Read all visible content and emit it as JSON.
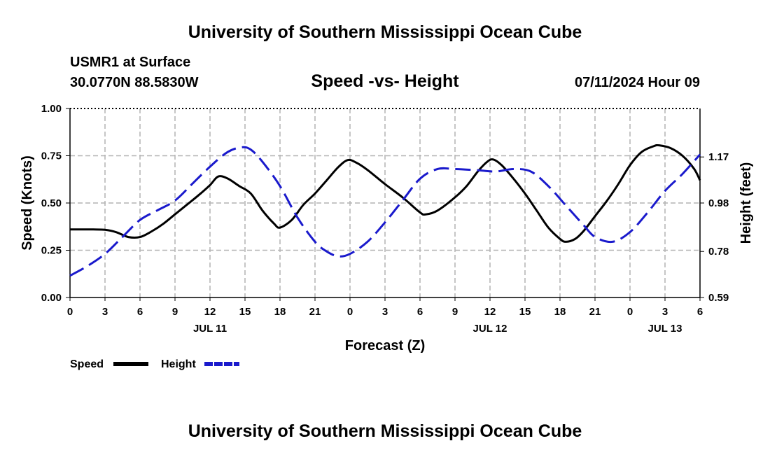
{
  "page": {
    "title_top": "University of Southern Mississippi Ocean Cube",
    "title_bottom": "University of Southern Mississippi Ocean Cube"
  },
  "chart_data": {
    "type": "line",
    "station": "USMR1 at Surface",
    "coords": "30.0770N  88.5830W",
    "title": "Speed -vs- Height",
    "date": "07/11/2024 Hour 09",
    "xlabel": "Forecast (Z)",
    "ylabel_left": "Speed (Knots)",
    "ylabel_right": "Height (feet)",
    "ylim_left": [
      0,
      1.0
    ],
    "ylim_right": [
      0.59,
      1.37
    ],
    "hour_range": [
      0,
      54
    ],
    "x_ticks": [
      {
        "hour": 0,
        "label": "0"
      },
      {
        "hour": 3,
        "label": "3"
      },
      {
        "hour": 6,
        "label": "6"
      },
      {
        "hour": 9,
        "label": "9"
      },
      {
        "hour": 12,
        "label": "12"
      },
      {
        "hour": 15,
        "label": "15"
      },
      {
        "hour": 18,
        "label": "18"
      },
      {
        "hour": 21,
        "label": "21"
      },
      {
        "hour": 24,
        "label": "0"
      },
      {
        "hour": 27,
        "label": "3"
      },
      {
        "hour": 30,
        "label": "6"
      },
      {
        "hour": 33,
        "label": "9"
      },
      {
        "hour": 36,
        "label": "12"
      },
      {
        "hour": 39,
        "label": "15"
      },
      {
        "hour": 42,
        "label": "18"
      },
      {
        "hour": 45,
        "label": "21"
      },
      {
        "hour": 48,
        "label": "0"
      },
      {
        "hour": 51,
        "label": "3"
      },
      {
        "hour": 54,
        "label": "6"
      }
    ],
    "date_labels": [
      {
        "hour": 12,
        "label": "JUL 11"
      },
      {
        "hour": 36,
        "label": "JUL 12"
      },
      {
        "hour": 51,
        "label": "JUL 13"
      }
    ],
    "y_ticks_left": [
      {
        "value": 0.0,
        "label": "0.00"
      },
      {
        "value": 0.25,
        "label": "0.25"
      },
      {
        "value": 0.5,
        "label": "0.50"
      },
      {
        "value": 0.75,
        "label": "0.75"
      },
      {
        "value": 1.0,
        "label": "1.00"
      }
    ],
    "y_ticks_right": [
      {
        "value": 0.59,
        "label": "0.59"
      },
      {
        "value": 0.78,
        "label": "0.78"
      },
      {
        "value": 0.98,
        "label": "0.98"
      },
      {
        "value": 1.17,
        "label": "1.17"
      }
    ],
    "series": [
      {
        "name": "Speed",
        "axis": "left",
        "color": "#000000",
        "dash": "solid",
        "points": [
          [
            0,
            0.36
          ],
          [
            1,
            0.36
          ],
          [
            2,
            0.36
          ],
          [
            3,
            0.358
          ],
          [
            4,
            0.345
          ],
          [
            5,
            0.32
          ],
          [
            6,
            0.32
          ],
          [
            7,
            0.35
          ],
          [
            8,
            0.39
          ],
          [
            9,
            0.44
          ],
          [
            10,
            0.49
          ],
          [
            11,
            0.54
          ],
          [
            12,
            0.595
          ],
          [
            12.7,
            0.64
          ],
          [
            13.5,
            0.63
          ],
          [
            14.5,
            0.59
          ],
          [
            15.5,
            0.55
          ],
          [
            16.5,
            0.46
          ],
          [
            17.5,
            0.39
          ],
          [
            18,
            0.37
          ],
          [
            19,
            0.41
          ],
          [
            20,
            0.49
          ],
          [
            21,
            0.55
          ],
          [
            22,
            0.62
          ],
          [
            23,
            0.69
          ],
          [
            23.8,
            0.727
          ],
          [
            24.5,
            0.715
          ],
          [
            25.5,
            0.675
          ],
          [
            27,
            0.6
          ],
          [
            28.5,
            0.53
          ],
          [
            30,
            0.45
          ],
          [
            30.5,
            0.44
          ],
          [
            31.5,
            0.46
          ],
          [
            33,
            0.53
          ],
          [
            34,
            0.59
          ],
          [
            35,
            0.67
          ],
          [
            35.8,
            0.72
          ],
          [
            36.3,
            0.73
          ],
          [
            37,
            0.7
          ],
          [
            38,
            0.63
          ],
          [
            39,
            0.55
          ],
          [
            40,
            0.46
          ],
          [
            41,
            0.37
          ],
          [
            42,
            0.31
          ],
          [
            42.5,
            0.295
          ],
          [
            43.3,
            0.31
          ],
          [
            44,
            0.35
          ],
          [
            45,
            0.43
          ],
          [
            46,
            0.51
          ],
          [
            47,
            0.6
          ],
          [
            48,
            0.7
          ],
          [
            49,
            0.77
          ],
          [
            50,
            0.8
          ],
          [
            50.5,
            0.805
          ],
          [
            51.5,
            0.79
          ],
          [
            52.5,
            0.75
          ],
          [
            53.5,
            0.68
          ],
          [
            54,
            0.62
          ]
        ]
      },
      {
        "name": "Height",
        "axis": "right",
        "color": "#1a1acc",
        "dash": "dashed",
        "points": [
          [
            0,
            0.68
          ],
          [
            1.5,
            0.72
          ],
          [
            3,
            0.77
          ],
          [
            4.5,
            0.84
          ],
          [
            6,
            0.91
          ],
          [
            7.5,
            0.95
          ],
          [
            9,
            0.99
          ],
          [
            10.5,
            1.06
          ],
          [
            12,
            1.13
          ],
          [
            13.5,
            1.19
          ],
          [
            14.7,
            1.21
          ],
          [
            15.5,
            1.2
          ],
          [
            16.5,
            1.15
          ],
          [
            18,
            1.05
          ],
          [
            19.5,
            0.92
          ],
          [
            21,
            0.82
          ],
          [
            22,
            0.78
          ],
          [
            23,
            0.76
          ],
          [
            24,
            0.77
          ],
          [
            25.5,
            0.82
          ],
          [
            27,
            0.9
          ],
          [
            28.5,
            0.99
          ],
          [
            30,
            1.08
          ],
          [
            31.5,
            1.12
          ],
          [
            33,
            1.12
          ],
          [
            35,
            1.115
          ],
          [
            36.5,
            1.11
          ],
          [
            38,
            1.12
          ],
          [
            39.5,
            1.11
          ],
          [
            41,
            1.05
          ],
          [
            42.5,
            0.97
          ],
          [
            44,
            0.89
          ],
          [
            45,
            0.84
          ],
          [
            46.5,
            0.82
          ],
          [
            48,
            0.86
          ],
          [
            49.5,
            0.94
          ],
          [
            51,
            1.03
          ],
          [
            52.5,
            1.1
          ],
          [
            54,
            1.18
          ]
        ]
      }
    ],
    "legend": [
      {
        "label": "Speed",
        "color": "#000000",
        "dash": "solid"
      },
      {
        "label": "Height",
        "color": "#1a1acc",
        "dash": "dashed"
      }
    ]
  }
}
